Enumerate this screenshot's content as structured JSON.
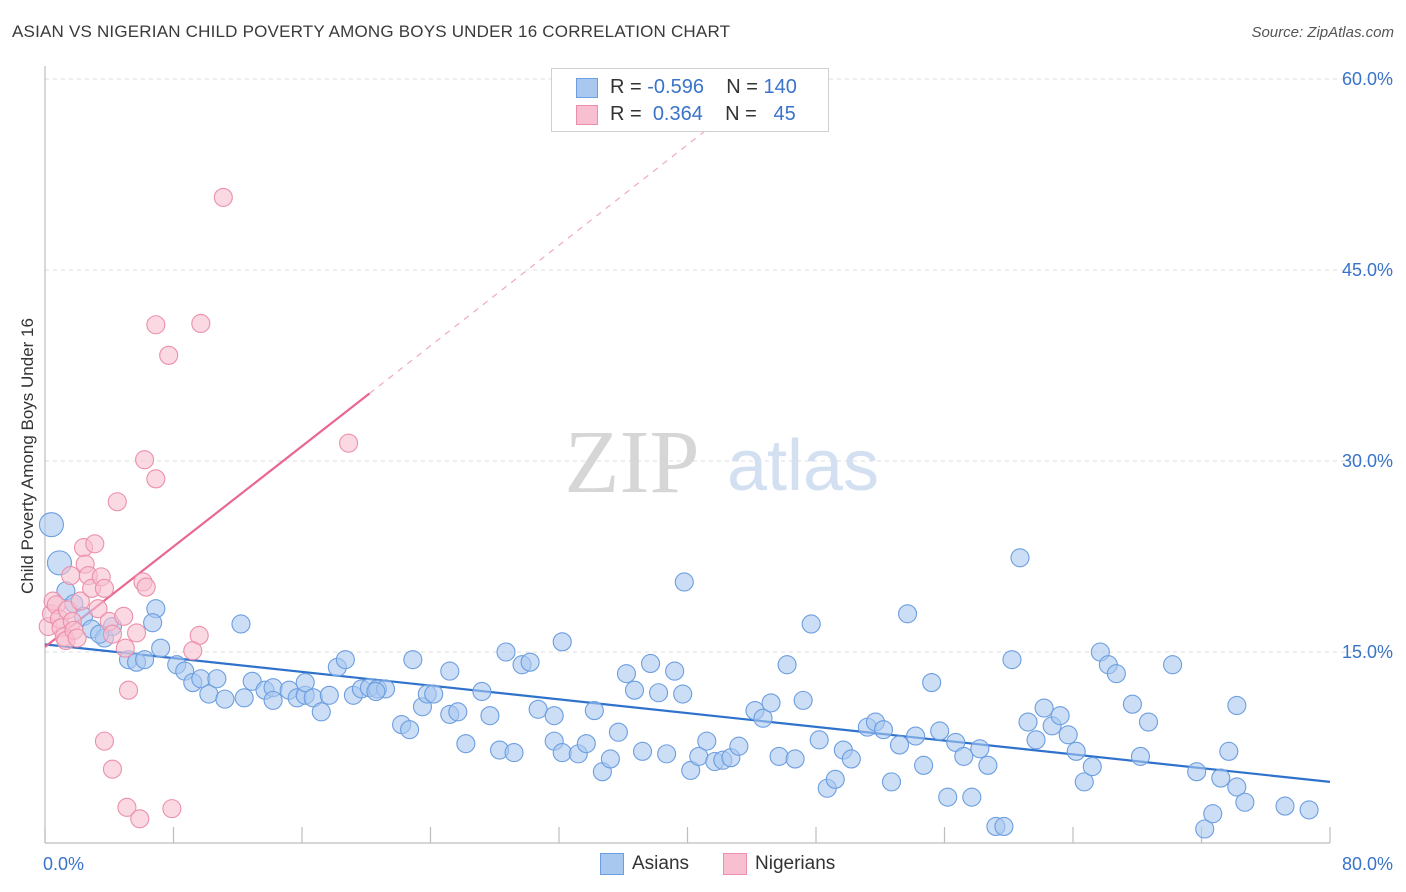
{
  "header": {
    "title": "ASIAN VS NIGERIAN CHILD POVERTY AMONG BOYS UNDER 16 CORRELATION CHART",
    "source": "Source: ZipAtlas.com"
  },
  "watermark": {
    "zip": "ZIP",
    "atlas": "atlas"
  },
  "legend": {
    "rows": [
      {
        "r_label": "R =",
        "r_value": "-0.596",
        "n_label": "N =",
        "n_value": "140"
      },
      {
        "r_label": "R =",
        "r_value": "0.364",
        "n_label": "N =",
        "n_value": "45"
      }
    ]
  },
  "bottom_legend": {
    "asians": "Asians",
    "nigerians": "Nigerians"
  },
  "colors": {
    "asians_fill": "#a9c8f0",
    "asians_stroke": "#6c9ee0",
    "asians_line": "#2f72cc",
    "nigerians_fill": "#f7bfd0",
    "nigerians_stroke": "#ec8fab",
    "nigerians_line": "#e86890",
    "axis_text": "#3a73c9",
    "grid": "#dcdcdc"
  },
  "chart_data": {
    "type": "scatter",
    "title": "ASIAN VS NIGERIAN CHILD POVERTY AMONG BOYS UNDER 16 CORRELATION CHART",
    "xlabel": "",
    "ylabel": "Child Poverty Among Boys Under 16",
    "xlim": [
      0,
      80
    ],
    "ylim": [
      0,
      60
    ],
    "x_tick_labels": [
      "0.0%",
      "80.0%"
    ],
    "y_tick_labels": [
      "15.0%",
      "30.0%",
      "45.0%",
      "60.0%"
    ],
    "y_ticks": [
      15,
      30,
      45,
      60
    ],
    "grid": true,
    "legend_position": "top-center",
    "series": [
      {
        "name": "Asians",
        "r": -0.596,
        "n": 140,
        "trend": {
          "x": [
            0,
            80
          ],
          "y": [
            15.6,
            4.8
          ],
          "style": "solid"
        },
        "points": [
          [
            0.4,
            25.0
          ],
          [
            0.9,
            22.0
          ],
          [
            1.3,
            19.8
          ],
          [
            1.8,
            18.8
          ],
          [
            2.4,
            17.8
          ],
          [
            2.9,
            16.8
          ],
          [
            3.7,
            16.1
          ],
          [
            4.2,
            17.0
          ],
          [
            3.4,
            16.4
          ],
          [
            6.9,
            18.4
          ],
          [
            6.7,
            17.3
          ],
          [
            5.2,
            14.4
          ],
          [
            5.7,
            14.2
          ],
          [
            6.2,
            14.4
          ],
          [
            7.2,
            15.3
          ],
          [
            8.2,
            14.0
          ],
          [
            8.7,
            13.5
          ],
          [
            9.2,
            12.6
          ],
          [
            9.7,
            12.9
          ],
          [
            10.2,
            11.7
          ],
          [
            10.7,
            12.9
          ],
          [
            11.2,
            11.3
          ],
          [
            12.2,
            17.2
          ],
          [
            12.4,
            11.4
          ],
          [
            12.9,
            12.7
          ],
          [
            13.7,
            12.0
          ],
          [
            14.2,
            12.2
          ],
          [
            14.2,
            11.2
          ],
          [
            15.2,
            12.0
          ],
          [
            15.7,
            11.4
          ],
          [
            16.2,
            11.6
          ],
          [
            16.2,
            12.6
          ],
          [
            16.7,
            11.4
          ],
          [
            17.2,
            10.3
          ],
          [
            17.7,
            11.6
          ],
          [
            18.2,
            13.8
          ],
          [
            18.7,
            14.4
          ],
          [
            19.2,
            11.6
          ],
          [
            19.7,
            12.1
          ],
          [
            20.2,
            12.2
          ],
          [
            20.7,
            12.1
          ],
          [
            21.2,
            12.1
          ],
          [
            22.2,
            9.3
          ],
          [
            22.7,
            8.9
          ],
          [
            22.9,
            14.4
          ],
          [
            23.5,
            10.7
          ],
          [
            23.8,
            11.7
          ],
          [
            24.2,
            11.7
          ],
          [
            25.2,
            13.5
          ],
          [
            25.2,
            10.1
          ],
          [
            25.7,
            10.3
          ],
          [
            26.2,
            7.8
          ],
          [
            27.2,
            11.9
          ],
          [
            27.7,
            10.0
          ],
          [
            28.3,
            7.3
          ],
          [
            28.7,
            15.0
          ],
          [
            29.2,
            7.1
          ],
          [
            29.7,
            14.0
          ],
          [
            30.2,
            14.2
          ],
          [
            30.7,
            10.5
          ],
          [
            31.7,
            8.0
          ],
          [
            31.7,
            10.0
          ],
          [
            32.2,
            7.1
          ],
          [
            32.2,
            15.8
          ],
          [
            33.2,
            7.0
          ],
          [
            33.7,
            7.8
          ],
          [
            34.2,
            10.4
          ],
          [
            34.7,
            5.6
          ],
          [
            35.2,
            6.6
          ],
          [
            35.7,
            8.7
          ],
          [
            36.2,
            13.3
          ],
          [
            36.7,
            12.0
          ],
          [
            37.2,
            7.2
          ],
          [
            37.7,
            14.1
          ],
          [
            38.2,
            11.8
          ],
          [
            38.7,
            7.0
          ],
          [
            39.2,
            13.5
          ],
          [
            39.7,
            11.7
          ],
          [
            40.2,
            5.7
          ],
          [
            40.7,
            6.8
          ],
          [
            41.2,
            8.0
          ],
          [
            41.7,
            6.4
          ],
          [
            42.2,
            6.5
          ],
          [
            42.7,
            6.7
          ],
          [
            43.2,
            7.6
          ],
          [
            20.6,
            11.9
          ],
          [
            39.8,
            20.5
          ],
          [
            44.2,
            10.4
          ],
          [
            44.7,
            9.8
          ],
          [
            45.2,
            11.0
          ],
          [
            45.7,
            6.8
          ],
          [
            46.2,
            14.0
          ],
          [
            46.7,
            6.6
          ],
          [
            47.2,
            11.2
          ],
          [
            47.7,
            17.2
          ],
          [
            48.2,
            8.1
          ],
          [
            48.7,
            4.3
          ],
          [
            49.2,
            5.0
          ],
          [
            49.7,
            7.3
          ],
          [
            50.2,
            6.6
          ],
          [
            51.2,
            9.1
          ],
          [
            51.7,
            9.5
          ],
          [
            52.2,
            8.9
          ],
          [
            52.7,
            4.8
          ],
          [
            53.2,
            7.7
          ],
          [
            53.7,
            18.0
          ],
          [
            54.2,
            8.4
          ],
          [
            54.7,
            6.1
          ],
          [
            55.2,
            12.6
          ],
          [
            55.7,
            8.8
          ],
          [
            56.2,
            3.6
          ],
          [
            56.7,
            7.9
          ],
          [
            57.2,
            6.8
          ],
          [
            57.7,
            3.6
          ],
          [
            58.2,
            7.4
          ],
          [
            58.7,
            6.1
          ],
          [
            59.2,
            1.3
          ],
          [
            59.7,
            1.3
          ],
          [
            60.2,
            14.4
          ],
          [
            60.7,
            22.4
          ],
          [
            61.2,
            9.5
          ],
          [
            61.7,
            8.1
          ],
          [
            62.2,
            10.6
          ],
          [
            62.7,
            9.2
          ],
          [
            63.2,
            10.0
          ],
          [
            63.7,
            8.5
          ],
          [
            64.2,
            7.2
          ],
          [
            64.7,
            4.8
          ],
          [
            65.2,
            6.0
          ],
          [
            65.7,
            15.0
          ],
          [
            66.2,
            14.0
          ],
          [
            66.7,
            13.3
          ],
          [
            67.7,
            10.9
          ],
          [
            68.2,
            6.8
          ],
          [
            68.7,
            9.5
          ],
          [
            70.2,
            14.0
          ],
          [
            71.7,
            5.6
          ],
          [
            72.2,
            1.1
          ],
          [
            72.7,
            2.3
          ],
          [
            73.2,
            5.1
          ],
          [
            73.7,
            7.2
          ],
          [
            74.2,
            10.8
          ],
          [
            74.2,
            4.4
          ],
          [
            74.7,
            3.2
          ],
          [
            77.2,
            2.9
          ],
          [
            78.7,
            2.6
          ]
        ]
      },
      {
        "name": "Nigerians",
        "r": 0.364,
        "n": 45,
        "trend": {
          "x": [
            0,
            20.2
          ],
          "y": [
            15.4,
            35.3
          ],
          "style": "solid",
          "extension": {
            "x": [
              20.2,
              43.2
            ],
            "y": [
              35.3,
              58.0
            ],
            "style": "dashed"
          }
        },
        "points": [
          [
            0.2,
            17.0
          ],
          [
            0.4,
            18.0
          ],
          [
            0.5,
            19.0
          ],
          [
            0.7,
            18.7
          ],
          [
            0.9,
            17.6
          ],
          [
            1.0,
            16.9
          ],
          [
            1.2,
            16.2
          ],
          [
            1.3,
            15.9
          ],
          [
            1.4,
            18.3
          ],
          [
            1.6,
            21.0
          ],
          [
            1.7,
            17.4
          ],
          [
            1.8,
            16.7
          ],
          [
            2.0,
            16.1
          ],
          [
            2.2,
            19.0
          ],
          [
            2.4,
            23.2
          ],
          [
            2.5,
            21.9
          ],
          [
            2.7,
            21.0
          ],
          [
            2.9,
            20.0
          ],
          [
            3.1,
            23.5
          ],
          [
            3.3,
            18.4
          ],
          [
            3.5,
            20.9
          ],
          [
            3.7,
            20.0
          ],
          [
            4.0,
            17.4
          ],
          [
            4.2,
            16.4
          ],
          [
            4.9,
            17.8
          ],
          [
            5.0,
            15.3
          ],
          [
            5.2,
            12.0
          ],
          [
            5.7,
            16.5
          ],
          [
            6.1,
            20.5
          ],
          [
            6.3,
            20.1
          ],
          [
            4.5,
            26.8
          ],
          [
            6.2,
            30.1
          ],
          [
            6.9,
            28.6
          ],
          [
            7.7,
            38.3
          ],
          [
            6.9,
            40.7
          ],
          [
            9.7,
            40.8
          ],
          [
            9.6,
            16.3
          ],
          [
            9.2,
            15.1
          ],
          [
            11.1,
            50.7
          ],
          [
            18.9,
            31.4
          ],
          [
            3.7,
            8.0
          ],
          [
            4.2,
            5.8
          ],
          [
            5.1,
            2.8
          ],
          [
            5.9,
            1.9
          ],
          [
            7.9,
            2.7
          ]
        ]
      }
    ]
  }
}
